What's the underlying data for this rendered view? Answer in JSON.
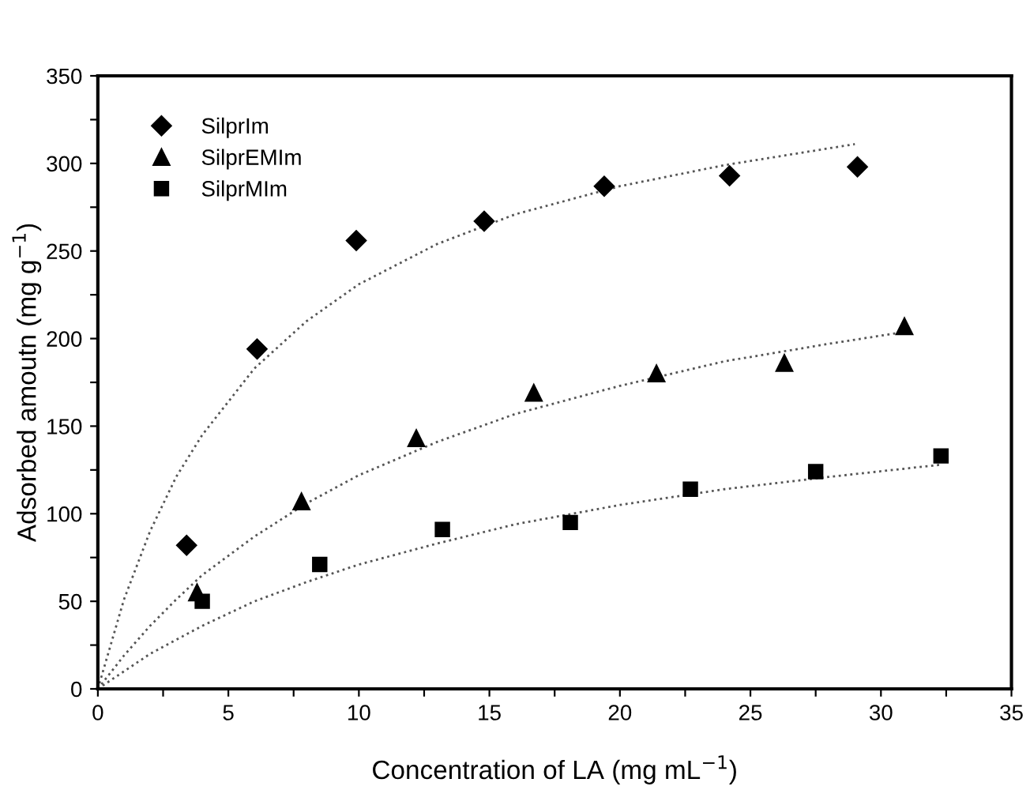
{
  "chart_data": {
    "type": "scatter",
    "xlabel": "Concentration of LA (mg mL$^{−1}$)",
    "ylabel": "Adsorbed amoutn (mg g$^{−1}$)",
    "xlim": [
      0,
      35
    ],
    "ylim": [
      0,
      350
    ],
    "xticks": [
      0,
      {
        "value": 2.5,
        "label": null
      },
      5,
      {
        "value": 7.5,
        "label": null
      },
      10,
      {
        "value": 12.5,
        "label": null
      },
      15,
      {
        "value": 17.5,
        "label": null
      },
      20,
      {
        "value": 22.5,
        "label": null
      },
      25,
      {
        "value": 27.5,
        "label": null
      },
      30,
      {
        "value": 32.5,
        "label": null
      },
      35
    ],
    "yticks": [
      0,
      {
        "value": 25,
        "label": null
      },
      50,
      {
        "value": 75,
        "label": null
      },
      100,
      {
        "value": 125,
        "label": null
      },
      150,
      {
        "value": 175,
        "label": null
      },
      200,
      {
        "value": 225,
        "label": null
      },
      250,
      {
        "value": 275,
        "label": null
      },
      300,
      {
        "value": 325,
        "label": null
      },
      350
    ],
    "grid": false,
    "legend": "top left",
    "series": [
      {
        "name": "SilprIm",
        "marker": "diamond",
        "color": "#000000",
        "x": [
          3.4,
          6.1,
          9.9,
          14.8,
          19.4,
          24.2,
          29.1
        ],
        "values": [
          82,
          194,
          256,
          267,
          287,
          293,
          298
        ]
      },
      {
        "name": "SilprEMIm",
        "marker": "triangle",
        "color": "#000000",
        "x": [
          3.8,
          7.8,
          12.2,
          16.7,
          21.4,
          26.3,
          30.9
        ],
        "values": [
          55,
          107,
          143,
          169,
          180,
          186,
          207
        ]
      },
      {
        "name": "SilprMIm",
        "marker": "square",
        "color": "#000000",
        "x": [
          4.0,
          8.5,
          13.2,
          18.1,
          22.7,
          27.5,
          32.3
        ],
        "values": [
          50,
          71,
          91,
          95,
          114,
          124,
          133
        ]
      },
      {
        "type": "line",
        "line_style": "dotted",
        "color": "#555555",
        "x": [
          0,
          1,
          2,
          3,
          4,
          6,
          8,
          10,
          13,
          16,
          20,
          24,
          29
        ],
        "values": [
          0,
          51,
          90,
          121,
          145,
          183,
          210,
          231,
          254,
          271,
          287,
          299,
          311
        ]
      },
      {
        "type": "line",
        "line_style": "dotted",
        "color": "#555555",
        "x": [
          0,
          1,
          2,
          3,
          4,
          6,
          8,
          10,
          13,
          16,
          20,
          24,
          28,
          31
        ],
        "values": [
          0,
          19,
          36,
          51,
          65,
          87,
          106,
          122,
          141,
          157,
          173,
          187,
          197,
          204
        ]
      },
      {
        "type": "line",
        "line_style": "dotted",
        "color": "#555555",
        "x": [
          0,
          1,
          2,
          3,
          4,
          6,
          8,
          10,
          13,
          16,
          20,
          24,
          28,
          32.3
        ],
        "values": [
          0,
          10,
          20,
          28,
          36,
          50,
          61,
          71,
          83,
          94,
          105,
          114,
          121,
          128
        ]
      }
    ]
  }
}
